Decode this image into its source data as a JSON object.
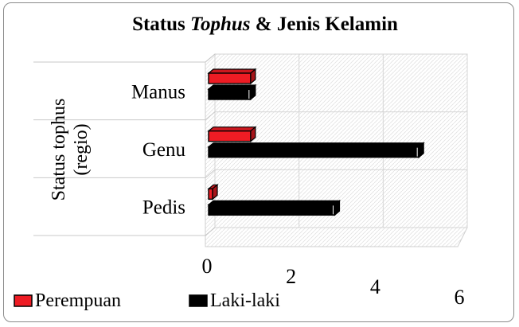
{
  "chart_data": {
    "type": "bar",
    "orientation": "horizontal",
    "style": "3d-clustered",
    "title_parts": [
      {
        "text": "Status ",
        "italic": false
      },
      {
        "text": "Tophus",
        "italic": true
      },
      {
        "text": " & Jenis Kelamin",
        "italic": false
      }
    ],
    "categories": [
      "Manus",
      "Genu",
      "Pedis"
    ],
    "series": [
      {
        "name": "Perempuan",
        "color": "#ee1c24",
        "values": [
          1,
          1,
          0
        ]
      },
      {
        "name": "Laki-laki",
        "color": "#000000",
        "values": [
          1,
          5,
          3
        ]
      }
    ],
    "xticks": [
      "0",
      "2",
      "4",
      "6"
    ],
    "xlim": [
      0,
      6
    ],
    "ylabel_lines": [
      "Status tophus",
      "(regio)"
    ],
    "xlabel": "",
    "grid": true,
    "legend_position": "bottom-left"
  }
}
